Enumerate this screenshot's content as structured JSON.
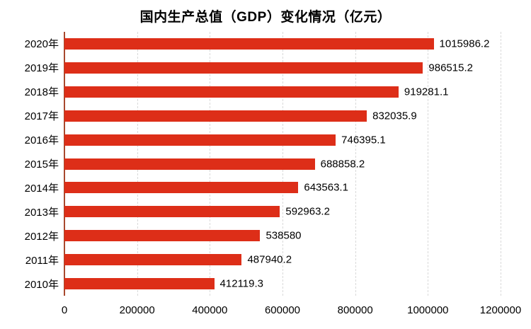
{
  "title": "国内生产总值（GDP）变化情况（亿元）",
  "colors": {
    "bar": "#dd2e18",
    "axis_line": "#a8492e",
    "gridline": "#d9d9d9",
    "text": "#000000",
    "background": "#ffffff"
  },
  "chart_data": {
    "type": "bar",
    "orientation": "horizontal",
    "title": "国内生产总值（GDP）变化情况（亿元）",
    "categories": [
      "2020年",
      "2019年",
      "2018年",
      "2017年",
      "2016年",
      "2015年",
      "2014年",
      "2013年",
      "2012年",
      "2011年",
      "2010年"
    ],
    "values": [
      1015986.2,
      986515.2,
      919281.1,
      832035.9,
      746395.1,
      688858.2,
      643563.1,
      592963.2,
      538580,
      487940.2,
      412119.3
    ],
    "value_labels": [
      "1015986.2",
      "986515.2",
      "919281.1",
      "832035.9",
      "746395.1",
      "688858.2",
      "643563.1",
      "592963.2",
      "538580",
      "487940.2",
      "412119.3"
    ],
    "xlabel": "",
    "ylabel": "",
    "x_ticks": [
      0,
      200000,
      400000,
      600000,
      800000,
      1000000,
      1200000
    ],
    "x_tick_labels": [
      "0",
      "200000",
      "400000",
      "600000",
      "800000",
      "1000000",
      "1200000"
    ],
    "xlim": [
      0,
      1200000
    ],
    "grid": "vertical-dashed",
    "legend": "none",
    "data_labels": "outside-end"
  }
}
